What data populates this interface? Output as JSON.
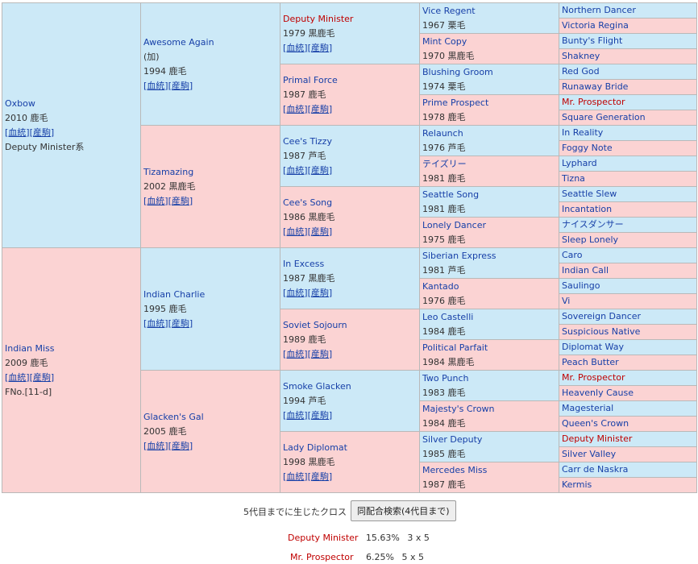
{
  "pedigree": {
    "g1": [
      {
        "name": "Oxbow",
        "year_color": "2010 鹿毛",
        "links": "[血統][産駒]",
        "extra": "Deputy Minister系",
        "sex": "m"
      },
      {
        "name": "Indian Miss",
        "year_color": "2009 鹿毛",
        "links": "[血統][産駒]",
        "extra": "FNo.[11-d]",
        "sex": "f"
      }
    ],
    "g2": [
      {
        "name": "Awesome Again",
        "note": "(加)",
        "year_color": "1994 鹿毛",
        "links": "[血統][産駒]",
        "sex": "m"
      },
      {
        "name": "Tizamazing",
        "note": "",
        "year_color": "2002 黒鹿毛",
        "links": "[血統][産駒]",
        "sex": "f"
      },
      {
        "name": "Indian Charlie",
        "note": "",
        "year_color": "1995 鹿毛",
        "links": "[血統][産駒]",
        "sex": "m"
      },
      {
        "name": "Glacken's Gal",
        "note": "",
        "year_color": "2005 鹿毛",
        "links": "[血統][産駒]",
        "sex": "f"
      }
    ],
    "g3": [
      {
        "name": "Deputy Minister",
        "year_color": "1979 黒鹿毛",
        "links": "[血統][産駒]",
        "sex": "m",
        "red": true
      },
      {
        "name": "Primal Force",
        "year_color": "1987 鹿毛",
        "links": "[血統][産駒]",
        "sex": "f",
        "red": false
      },
      {
        "name": "Cee's Tizzy",
        "year_color": "1987 芦毛",
        "links": "[血統][産駒]",
        "sex": "m",
        "red": false
      },
      {
        "name": "Cee's Song",
        "year_color": "1986 黒鹿毛",
        "links": "[血統][産駒]",
        "sex": "f",
        "red": false
      },
      {
        "name": "In Excess",
        "year_color": "1987 黒鹿毛",
        "links": "[血統][産駒]",
        "sex": "m",
        "red": false
      },
      {
        "name": "Soviet Sojourn",
        "year_color": "1989 鹿毛",
        "links": "[血統][産駒]",
        "sex": "f",
        "red": false
      },
      {
        "name": "Smoke Glacken",
        "year_color": "1994 芦毛",
        "links": "[血統][産駒]",
        "sex": "m",
        "red": false
      },
      {
        "name": "Lady Diplomat",
        "year_color": "1998 黒鹿毛",
        "links": "[血統][産駒]",
        "sex": "f",
        "red": false
      }
    ],
    "g4": [
      {
        "name": "Vice Regent",
        "year_color": "1967 栗毛",
        "sex": "m"
      },
      {
        "name": "Mint Copy",
        "year_color": "1970 黒鹿毛",
        "sex": "f"
      },
      {
        "name": "Blushing Groom",
        "year_color": "1974 栗毛",
        "sex": "m"
      },
      {
        "name": "Prime Prospect",
        "year_color": "1978 鹿毛",
        "sex": "f"
      },
      {
        "name": "Relaunch",
        "year_color": "1976 芦毛",
        "sex": "m"
      },
      {
        "name": "テイズリー",
        "year_color": "1981 鹿毛",
        "sex": "f"
      },
      {
        "name": "Seattle Song",
        "year_color": "1981 鹿毛",
        "sex": "m"
      },
      {
        "name": "Lonely Dancer",
        "year_color": "1975 鹿毛",
        "sex": "f"
      },
      {
        "name": "Siberian Express",
        "year_color": "1981 芦毛",
        "sex": "m"
      },
      {
        "name": "Kantado",
        "year_color": "1976 鹿毛",
        "sex": "f"
      },
      {
        "name": "Leo Castelli",
        "year_color": "1984 鹿毛",
        "sex": "m"
      },
      {
        "name": "Political Parfait",
        "year_color": "1984 黒鹿毛",
        "sex": "f"
      },
      {
        "name": "Two Punch",
        "year_color": "1983 鹿毛",
        "sex": "m"
      },
      {
        "name": "Majesty's Crown",
        "year_color": "1984 鹿毛",
        "sex": "f"
      },
      {
        "name": "Silver Deputy",
        "year_color": "1985 鹿毛",
        "sex": "m"
      },
      {
        "name": "Mercedes Miss",
        "year_color": "1987 鹿毛",
        "sex": "f"
      }
    ],
    "g5": [
      {
        "name": "Northern Dancer",
        "sex": "m",
        "red": false
      },
      {
        "name": "Victoria Regina",
        "sex": "f",
        "red": false
      },
      {
        "name": "Bunty's Flight",
        "sex": "m",
        "red": false
      },
      {
        "name": "Shakney",
        "sex": "f",
        "red": false
      },
      {
        "name": "Red God",
        "sex": "m",
        "red": false
      },
      {
        "name": "Runaway Bride",
        "sex": "f",
        "red": false
      },
      {
        "name": "Mr. Prospector",
        "sex": "m",
        "red": true
      },
      {
        "name": "Square Generation",
        "sex": "f",
        "red": false
      },
      {
        "name": "In Reality",
        "sex": "m",
        "red": false
      },
      {
        "name": "Foggy Note",
        "sex": "f",
        "red": false
      },
      {
        "name": "Lyphard",
        "sex": "m",
        "red": false
      },
      {
        "name": "Tizna",
        "sex": "f",
        "red": false
      },
      {
        "name": "Seattle Slew",
        "sex": "m",
        "red": false
      },
      {
        "name": "Incantation",
        "sex": "f",
        "red": false
      },
      {
        "name": "ナイスダンサー",
        "sex": "m",
        "red": false
      },
      {
        "name": "Sleep Lonely",
        "sex": "f",
        "red": false
      },
      {
        "name": "Caro",
        "sex": "m",
        "red": false
      },
      {
        "name": "Indian Call",
        "sex": "f",
        "red": false
      },
      {
        "name": "Saulingo",
        "sex": "m",
        "red": false
      },
      {
        "name": "Vi",
        "sex": "f",
        "red": false
      },
      {
        "name": "Sovereign Dancer",
        "sex": "m",
        "red": false
      },
      {
        "name": "Suspicious Native",
        "sex": "f",
        "red": false
      },
      {
        "name": "Diplomat Way",
        "sex": "m",
        "red": false
      },
      {
        "name": "Peach Butter",
        "sex": "f",
        "red": false
      },
      {
        "name": "Mr. Prospector",
        "sex": "m",
        "red": true
      },
      {
        "name": "Heavenly Cause",
        "sex": "f",
        "red": false
      },
      {
        "name": "Magesterial",
        "sex": "m",
        "red": false
      },
      {
        "name": "Queen's Crown",
        "sex": "f",
        "red": false
      },
      {
        "name": "Deputy Minister",
        "sex": "m",
        "red": true
      },
      {
        "name": "Silver Valley",
        "sex": "f",
        "red": false
      },
      {
        "name": "Carr de Naskra",
        "sex": "m",
        "red": false
      },
      {
        "name": "Kermis",
        "sex": "f",
        "red": false
      }
    ]
  },
  "cross": {
    "label": "5代目までに生じたクロス",
    "button": "同配合検索(4代目まで)",
    "items": [
      {
        "name": "Deputy Minister",
        "pct": "15.63%",
        "gen": "3 x 5"
      },
      {
        "name": "Mr. Prospector",
        "pct": "6.25%",
        "gen": "5 x 5"
      }
    ]
  },
  "colors": {
    "male_bg": "#cce9f7",
    "female_bg": "#fbd3d3",
    "link": "#1740a8",
    "cross_red": "#c00000"
  }
}
